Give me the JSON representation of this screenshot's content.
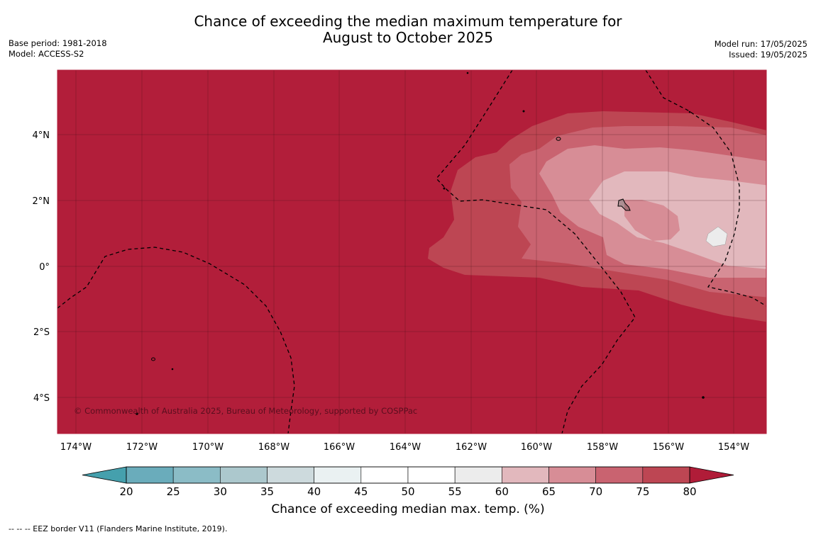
{
  "header": {
    "title_line1": "Chance of exceeding the median maximum temperature for",
    "title_line2": "August to October 2025",
    "base_period": "Base period: 1981-2018",
    "model": "Model: ACCESS-S2",
    "model_run": "Model run: 17/05/2025",
    "issued": "Issued: 19/05/2025"
  },
  "map": {
    "x_ticks": [
      "174°W",
      "172°W",
      "170°W",
      "168°W",
      "166°W",
      "164°W",
      "162°W",
      "160°W",
      "158°W",
      "156°W",
      "154°W"
    ],
    "y_ticks": [
      "4°N",
      "2°N",
      "0°",
      "2°S",
      "4°S"
    ],
    "copyright": "© Commonwealth of Australia 2025, Bureau of Meteorology, supported by COSPPac"
  },
  "colorbar": {
    "ticks": [
      "20",
      "25",
      "30",
      "35",
      "40",
      "45",
      "50",
      "55",
      "60",
      "65",
      "70",
      "75",
      "80"
    ],
    "colors": [
      "#6aacbb",
      "#8bbcc6",
      "#acc8cd",
      "#cddadd",
      "#eaf1f2",
      "#ffffff",
      "#ffffff",
      "#ececec",
      "#e2b8bd",
      "#d78d96",
      "#c96370",
      "#bd4653"
    ],
    "low_color": "#45a0ad",
    "high_color": "#b01c38",
    "label": "Chance of exceeding median max. temp. (%)"
  },
  "colors": {
    "base": "#b21e3a",
    "c75": "#bd4653",
    "c70": "#c96370",
    "c65": "#d78d96",
    "c60": "#e2b8bd",
    "c55": "#ececec"
  },
  "footnote": "--  --  -- EEZ border V11 (Flanders Marine Institute, 2019)."
}
